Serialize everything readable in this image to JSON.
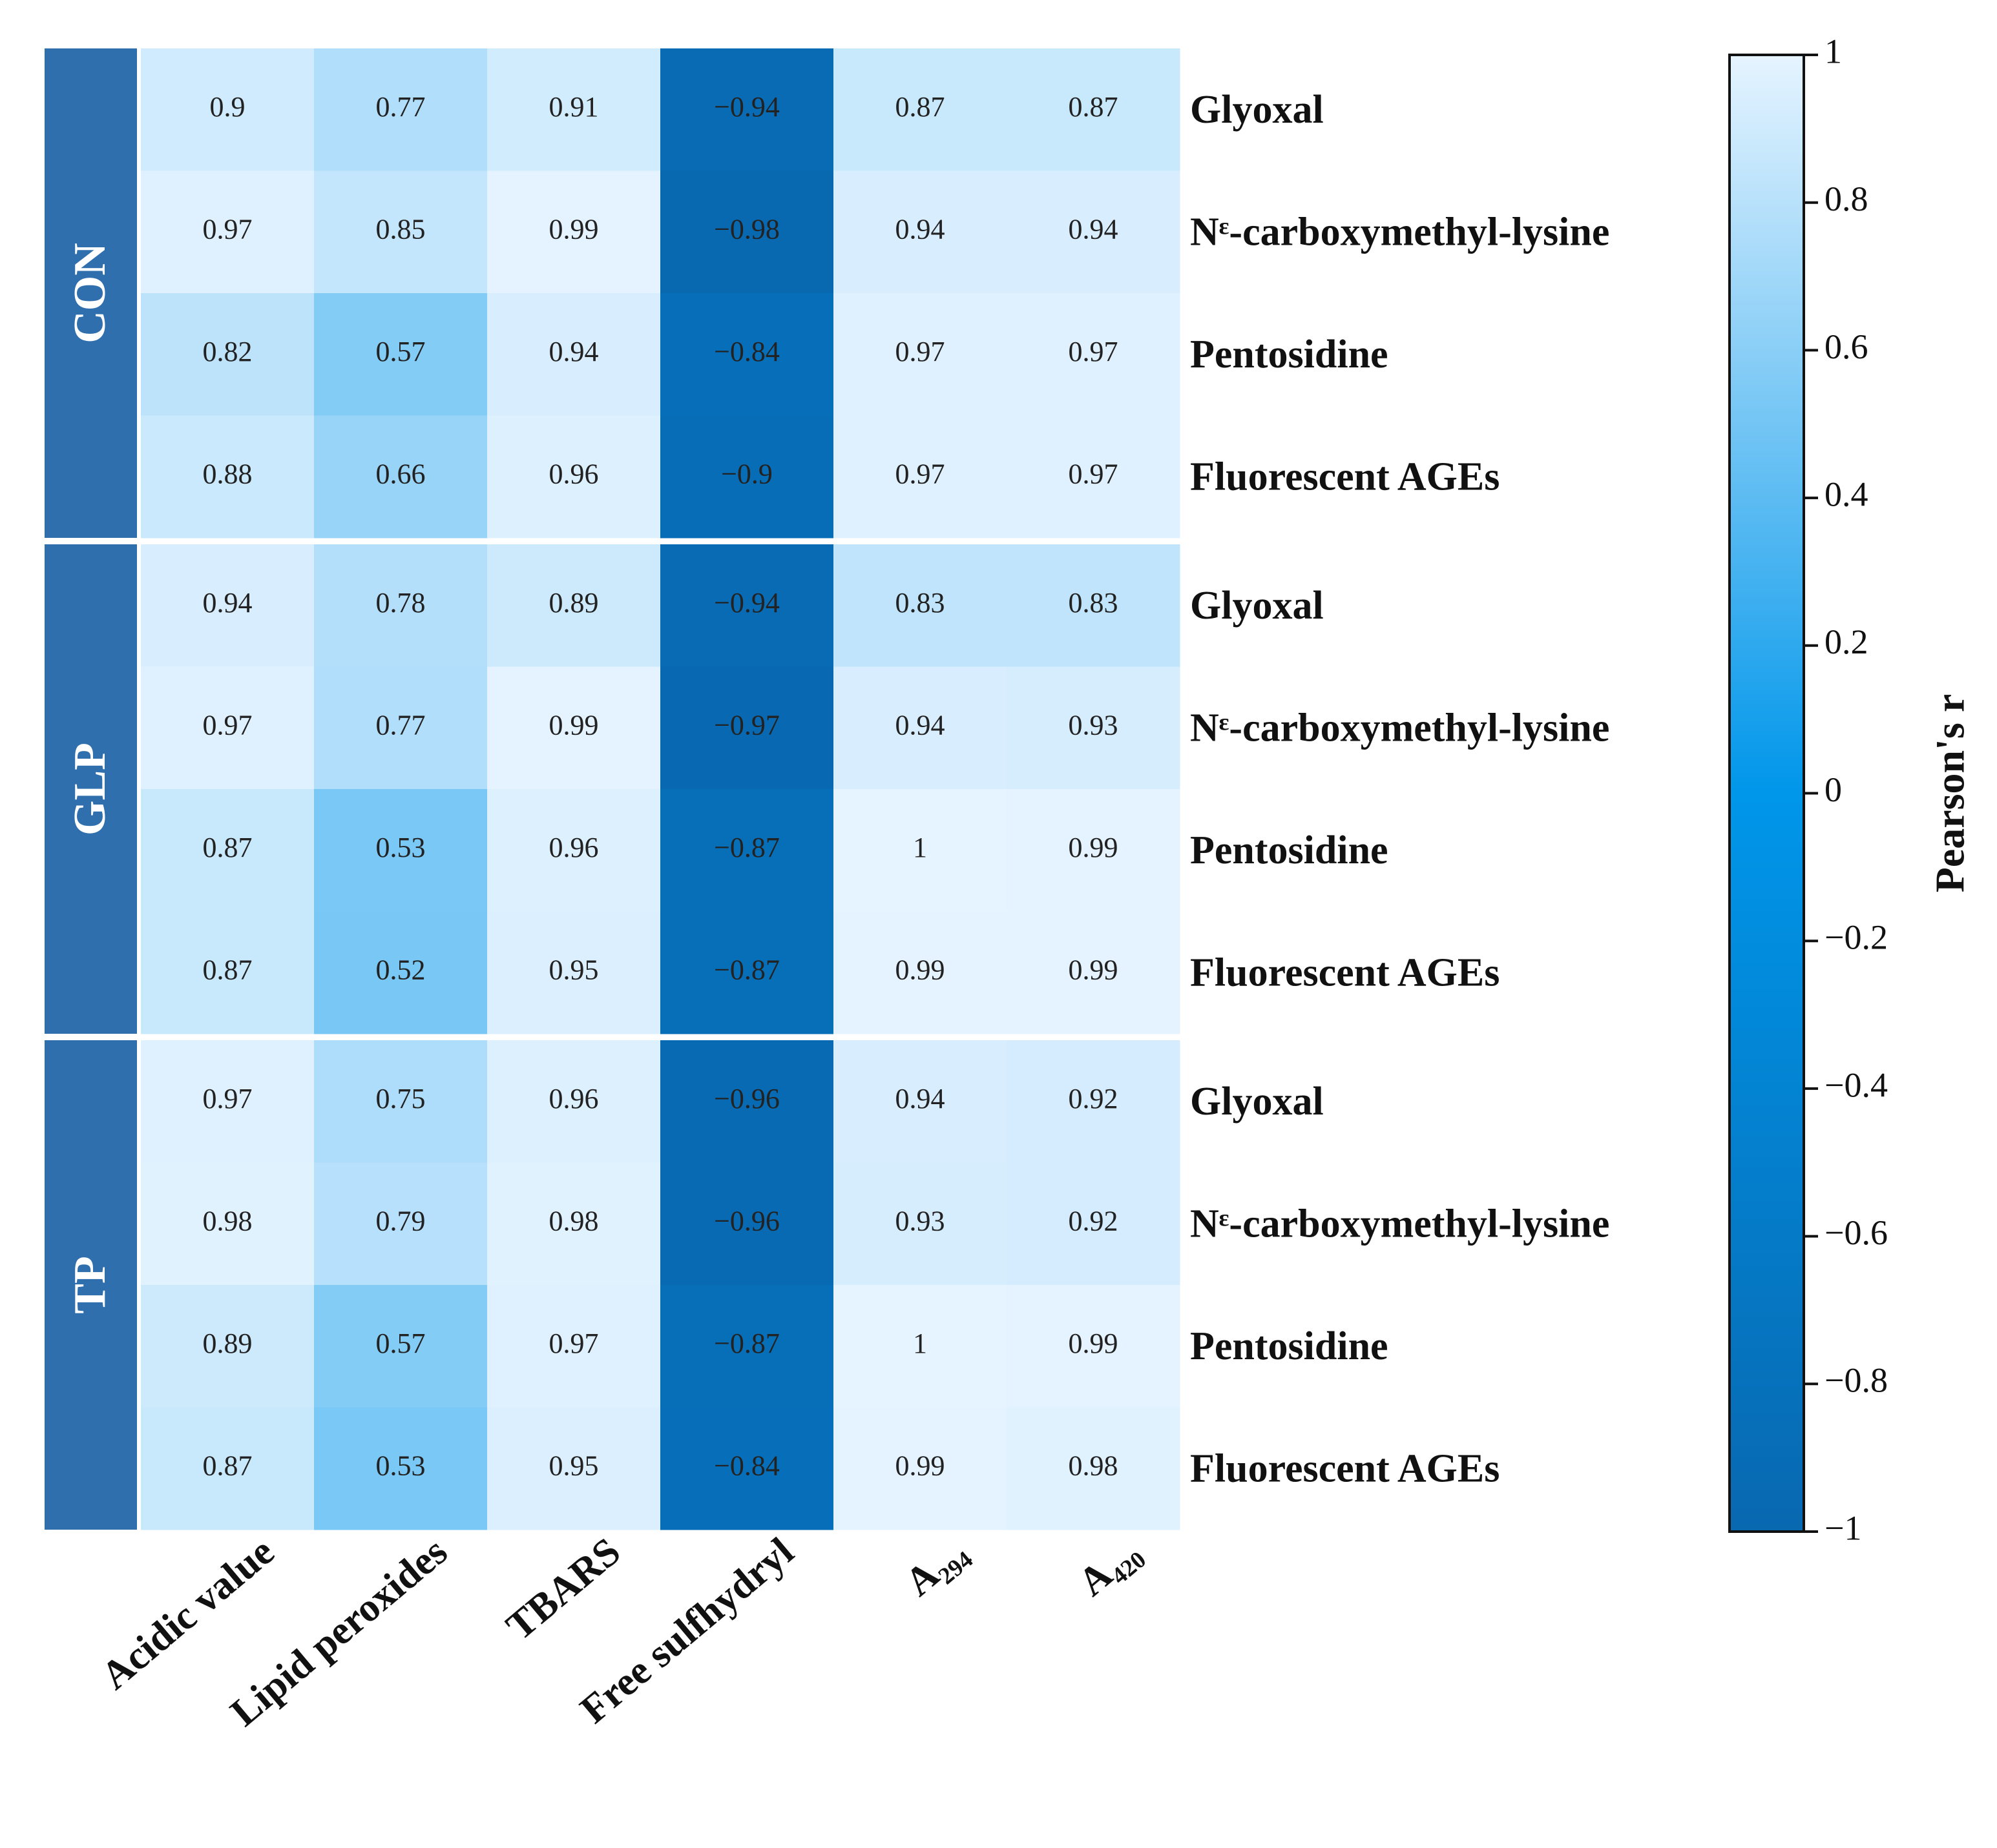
{
  "chart_data": {
    "type": "heatmap",
    "groups": [
      "CON",
      "GLP",
      "TP"
    ],
    "group_color": "#2f6fae",
    "row_labels": [
      "Glyoxal",
      "Nᵋ-carboxymethyl-lysine",
      "Pentosidine",
      "Fluorescent AGEs",
      "Glyoxal",
      "Nᵋ-carboxymethyl-lysine",
      "Pentosidine",
      "Fluorescent AGEs",
      "Glyoxal",
      "Nᵋ-carboxymethyl-lysine",
      "Pentosidine",
      "Fluorescent AGEs"
    ],
    "x_labels": [
      "Acidic value",
      "Lipid peroxides",
      "TBARS",
      "Free sulfhydryl",
      "A₂₉₄",
      "A₄₂₀"
    ],
    "values": [
      [
        0.9,
        0.77,
        0.91,
        -0.94,
        0.87,
        0.87
      ],
      [
        0.97,
        0.85,
        0.99,
        -0.98,
        0.94,
        0.94
      ],
      [
        0.82,
        0.57,
        0.94,
        -0.84,
        0.97,
        0.97
      ],
      [
        0.88,
        0.66,
        0.96,
        -0.9,
        0.97,
        0.97
      ],
      [
        0.94,
        0.78,
        0.89,
        -0.94,
        0.83,
        0.83
      ],
      [
        0.97,
        0.77,
        0.99,
        -0.97,
        0.94,
        0.93
      ],
      [
        0.87,
        0.53,
        0.96,
        -0.87,
        1,
        0.99
      ],
      [
        0.87,
        0.52,
        0.95,
        -0.87,
        0.99,
        0.99
      ],
      [
        0.97,
        0.75,
        0.96,
        -0.96,
        0.94,
        0.92
      ],
      [
        0.98,
        0.79,
        0.98,
        -0.96,
        0.93,
        0.92
      ],
      [
        0.89,
        0.57,
        0.97,
        -0.87,
        1,
        0.99
      ],
      [
        0.87,
        0.53,
        0.95,
        -0.84,
        0.99,
        0.98
      ]
    ],
    "value_labels": [
      [
        "0.9",
        "0.77",
        "0.91",
        "−0.94",
        "0.87",
        "0.87"
      ],
      [
        "0.97",
        "0.85",
        "0.99",
        "−0.98",
        "0.94",
        "0.94"
      ],
      [
        "0.82",
        "0.57",
        "0.94",
        "−0.84",
        "0.97",
        "0.97"
      ],
      [
        "0.88",
        "0.66",
        "0.96",
        "−0.9",
        "0.97",
        "0.97"
      ],
      [
        "0.94",
        "0.78",
        "0.89",
        "−0.94",
        "0.83",
        "0.83"
      ],
      [
        "0.97",
        "0.77",
        "0.99",
        "−0.97",
        "0.94",
        "0.93"
      ],
      [
        "0.87",
        "0.53",
        "0.96",
        "−0.87",
        "1",
        "0.99"
      ],
      [
        "0.87",
        "0.52",
        "0.95",
        "−0.87",
        "0.99",
        "0.99"
      ],
      [
        "0.97",
        "0.75",
        "0.96",
        "−0.96",
        "0.94",
        "0.92"
      ],
      [
        "0.98",
        "0.79",
        "0.98",
        "−0.96",
        "0.93",
        "0.92"
      ],
      [
        "0.89",
        "0.57",
        "0.97",
        "−0.87",
        "1",
        "0.99"
      ],
      [
        "0.87",
        "0.53",
        "0.95",
        "−0.84",
        "0.99",
        "0.98"
      ]
    ],
    "colormap": [
      "#0868b0",
      "#0096ea",
      "#e6f4ff"
    ],
    "zlim": [
      -1,
      1
    ],
    "zticks": [
      {
        "value": -1,
        "label": "−1"
      },
      {
        "value": -0.8,
        "label": "−0.8"
      },
      {
        "value": -0.6,
        "label": "−0.6"
      },
      {
        "value": -0.4,
        "label": "−0.4"
      },
      {
        "value": -0.2,
        "label": "−0.2"
      },
      0,
      0.2,
      0.4,
      0.6,
      0.8,
      1
    ],
    "colorbar_label": "Pearson's r"
  }
}
